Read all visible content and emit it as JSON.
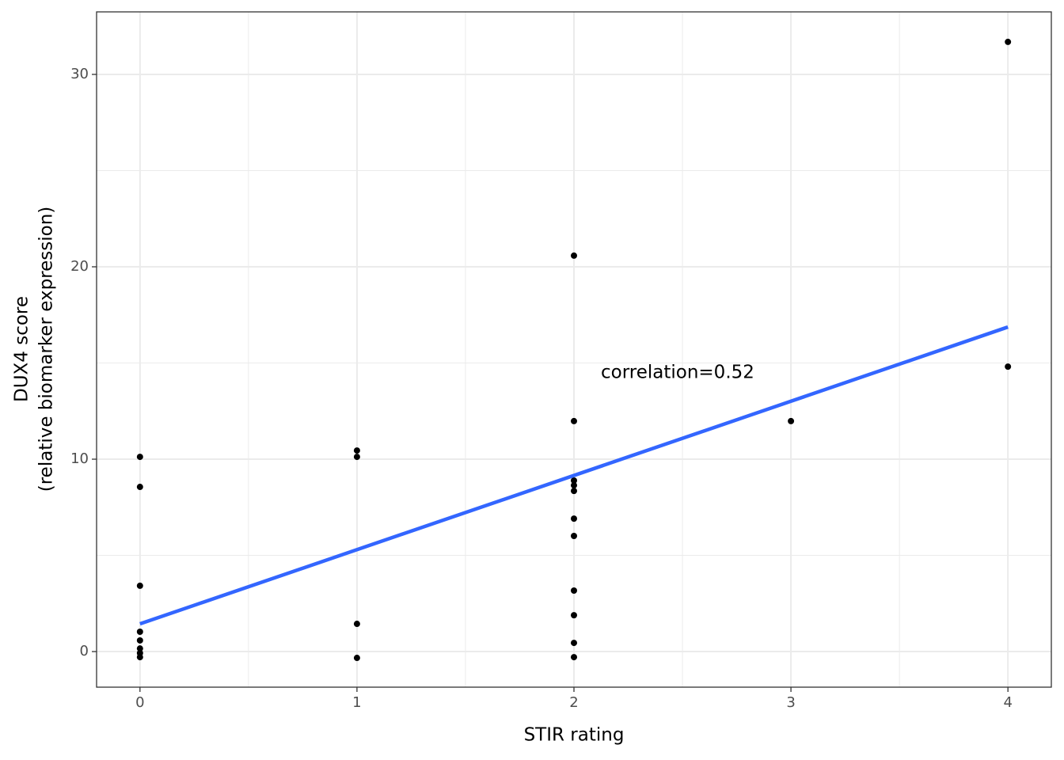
{
  "chart_data": {
    "type": "scatter",
    "xlabel": "STIR rating",
    "ylabel": [
      "DUX4 score",
      "(relative biomarker expression)"
    ],
    "annotation": "correlation=0.52",
    "x": [
      0,
      0,
      0,
      0,
      0,
      0,
      0,
      0,
      1,
      1,
      1,
      1,
      2,
      2,
      2,
      2,
      2,
      2,
      2,
      2,
      2,
      2,
      2,
      3,
      4,
      4
    ],
    "values": [
      10.12,
      8.56,
      3.42,
      1.03,
      0.58,
      0.16,
      -0.08,
      -0.29,
      10.45,
      10.12,
      1.44,
      -0.33,
      20.58,
      11.98,
      8.89,
      8.64,
      8.35,
      6.91,
      6.01,
      3.17,
      1.89,
      0.45,
      -0.29,
      11.98,
      31.69,
      14.81
    ],
    "color": "#000000",
    "fit": {
      "x": [
        0,
        4
      ],
      "values": [
        1.44,
        16.87
      ],
      "color": "#3366ff"
    },
    "xlim": [
      -0.2,
      4.2
    ],
    "xticks": [
      0,
      1,
      2,
      3,
      4
    ],
    "xminor": [
      0.5,
      1.5,
      2.5,
      3.5
    ],
    "ylim": [
      -1.85,
      33.25
    ],
    "yticks": [
      0,
      10,
      20,
      30
    ],
    "yminor": [
      5,
      15,
      25
    ],
    "grid": true
  }
}
